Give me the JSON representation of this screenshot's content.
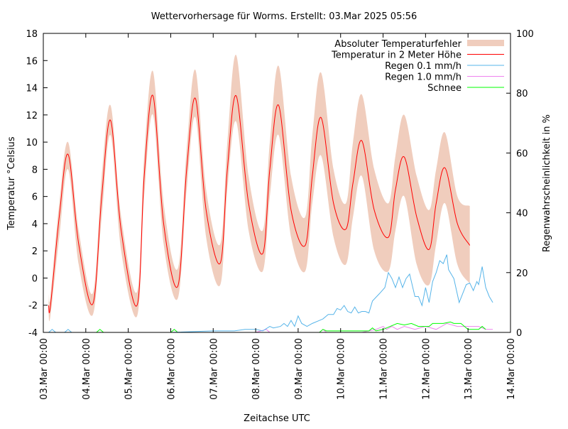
{
  "chart_data": {
    "type": "line",
    "title": "Wettervorhersage für Worms. Erstellt: 03.Mar 2025 05:56",
    "xlabel": "Zeitachse UTC",
    "ylabel": "Temperatur °Celsius",
    "y2label": "Regenwahrscheinlichkeit in %",
    "xlim": [
      "03.Mar 00:00",
      "14.Mar 00:00"
    ],
    "ylim": [
      -4,
      18
    ],
    "y2lim": [
      0,
      100
    ],
    "xticks": [
      "03.Mar 00:00",
      "04.Mar 00:00",
      "05.Mar 00:00",
      "06.Mar 00:00",
      "07.Mar 00:00",
      "08.Mar 00:00",
      "09.Mar 00:00",
      "10.Mar 00:00",
      "11.Mar 00:00",
      "12.Mar 00:00",
      "13.Mar 00:00",
      "14.Mar 00:00"
    ],
    "yticks": [
      -4,
      -2,
      0,
      2,
      4,
      6,
      8,
      10,
      12,
      14,
      16,
      18
    ],
    "y2ticks": [
      0,
      20,
      40,
      60,
      80,
      100
    ],
    "grid": false,
    "legend_position": "top-right",
    "series": [
      {
        "name": "Absoluter Temperaturfehler",
        "kind": "band",
        "axis": "y",
        "color": "#f0cdbd",
        "note_columns": [
          "time",
          "low",
          "high"
        ]
      },
      {
        "name": "Temperatur in 2 Meter Höhe",
        "kind": "line",
        "axis": "y",
        "color": "#ff0000"
      },
      {
        "name": "Regen 0.1 mm/h",
        "kind": "line",
        "axis": "y2",
        "color": "#56b4e9"
      },
      {
        "name": "Regen 1.0 mm/h",
        "kind": "line",
        "axis": "y2",
        "color": "#ee82ee"
      },
      {
        "name": "Schnee",
        "kind": "line",
        "axis": "y2",
        "color": "#00ff00"
      }
    ],
    "temperature": [
      [
        "03.Mar 03:00",
        -2.0,
        -2.6,
        -1.2
      ],
      [
        "03.Mar 04:00",
        -2.1,
        -2.8,
        -1.3
      ],
      [
        "03.Mar 09:00",
        4.5,
        3,
        5.5
      ],
      [
        "03.Mar 14:00",
        9.1,
        8,
        10
      ],
      [
        "03.Mar 20:00",
        2.5,
        1,
        3.5
      ],
      [
        "04.Mar 04:00",
        -1.9,
        -2.7,
        -1.1
      ],
      [
        "04.Mar 09:00",
        6,
        4.5,
        7.5
      ],
      [
        "04.Mar 14:00",
        11.6,
        10.5,
        12.7
      ],
      [
        "04.Mar 20:00",
        3.5,
        2,
        4.5
      ],
      [
        "05.Mar 05:00",
        -2,
        -2.8,
        -1
      ],
      [
        "05.Mar 09:00",
        7.5,
        6,
        9
      ],
      [
        "05.Mar 14:00",
        13.4,
        12,
        15.2
      ],
      [
        "05.Mar 20:00",
        4,
        2.5,
        5.5
      ],
      [
        "06.Mar 04:00",
        -0.6,
        -1.5,
        0.7
      ],
      [
        "06.Mar 09:00",
        8,
        6.5,
        9.5
      ],
      [
        "06.Mar 14:00",
        13.2,
        11.8,
        15.3
      ],
      [
        "06.Mar 20:00",
        5,
        3,
        6.5
      ],
      [
        "07.Mar 04:00",
        1.1,
        -0.5,
        2.5
      ],
      [
        "07.Mar 08:00",
        8,
        6.5,
        10
      ],
      [
        "07.Mar 13:00",
        13.4,
        11.5,
        16.4
      ],
      [
        "07.Mar 20:00",
        5.5,
        3.5,
        7.5
      ],
      [
        "08.Mar 04:00",
        1.8,
        0.5,
        3.5
      ],
      [
        "08.Mar 08:00",
        8,
        6,
        10
      ],
      [
        "08.Mar 13:00",
        12.7,
        10.5,
        15.6
      ],
      [
        "08.Mar 20:00",
        5,
        3,
        7.5
      ],
      [
        "09.Mar 04:00",
        2.4,
        0.5,
        4.5
      ],
      [
        "09.Mar 08:00",
        7.5,
        5.5,
        10.5
      ],
      [
        "09.Mar 13:00",
        11.8,
        9,
        15.1
      ],
      [
        "09.Mar 20:00",
        5.5,
        3,
        8
      ],
      [
        "10.Mar 03:00",
        3.6,
        1,
        5.5
      ],
      [
        "10.Mar 07:00",
        7,
        4.5,
        10
      ],
      [
        "10.Mar 12:00",
        10.1,
        7.5,
        13.5
      ],
      [
        "10.Mar 19:00",
        5,
        2,
        8
      ],
      [
        "11.Mar 03:00",
        3,
        0.5,
        5.5
      ],
      [
        "11.Mar 07:00",
        6.5,
        3.5,
        9
      ],
      [
        "11.Mar 12:00",
        8.9,
        6,
        12
      ],
      [
        "11.Mar 19:00",
        4.5,
        1,
        7.5
      ],
      [
        "12.Mar 02:00",
        2.1,
        -0.5,
        5
      ],
      [
        "12.Mar 06:00",
        5.5,
        2.5,
        8
      ],
      [
        "12.Mar 11:00",
        8.1,
        5.5,
        10.7
      ],
      [
        "12.Mar 18:00",
        4,
        1,
        6
      ],
      [
        "13.Mar 01:00",
        2.4,
        -0.4,
        5.3
      ]
    ],
    "rain_01": [
      [
        "03.Mar 03:00",
        0
      ],
      [
        "03.Mar 05:00",
        1
      ],
      [
        "03.Mar 07:00",
        0
      ],
      [
        "03.Mar 12:00",
        0
      ],
      [
        "03.Mar 14:00",
        1
      ],
      [
        "03.Mar 16:00",
        0
      ],
      [
        "04.Mar 00:00",
        0
      ],
      [
        "04.Mar 06:00",
        0
      ],
      [
        "05.Mar 00:00",
        0
      ],
      [
        "05.Mar 12:00",
        0
      ],
      [
        "06.Mar 00:00",
        0
      ],
      [
        "07.Mar 00:00",
        0.5
      ],
      [
        "07.Mar 12:00",
        0.5
      ],
      [
        "07.Mar 18:00",
        1
      ],
      [
        "08.Mar 00:00",
        1
      ],
      [
        "08.Mar 04:00",
        0.5
      ],
      [
        "08.Mar 08:00",
        2
      ],
      [
        "08.Mar 10:00",
        1.5
      ],
      [
        "08.Mar 14:00",
        2
      ],
      [
        "08.Mar 16:00",
        3
      ],
      [
        "08.Mar 18:00",
        2
      ],
      [
        "08.Mar 20:00",
        4
      ],
      [
        "08.Mar 22:00",
        2
      ],
      [
        "09.Mar 00:00",
        5.5
      ],
      [
        "09.Mar 02:00",
        3
      ],
      [
        "09.Mar 05:00",
        2
      ],
      [
        "09.Mar 08:00",
        3
      ],
      [
        "09.Mar 12:00",
        4
      ],
      [
        "09.Mar 14:00",
        4.5
      ],
      [
        "09.Mar 17:00",
        6
      ],
      [
        "09.Mar 20:00",
        6
      ],
      [
        "09.Mar 22:00",
        8
      ],
      [
        "10.Mar 00:00",
        7.5
      ],
      [
        "10.Mar 02:00",
        9
      ],
      [
        "10.Mar 04:00",
        7
      ],
      [
        "10.Mar 06:00",
        6.5
      ],
      [
        "10.Mar 08:00",
        8.5
      ],
      [
        "10.Mar 10:00",
        6.5
      ],
      [
        "10.Mar 12:00",
        7
      ],
      [
        "10.Mar 14:00",
        7
      ],
      [
        "10.Mar 16:00",
        6.5
      ],
      [
        "10.Mar 18:00",
        10.5
      ],
      [
        "10.Mar 22:00",
        13
      ],
      [
        "11.Mar 01:00",
        15
      ],
      [
        "11.Mar 03:00",
        20
      ],
      [
        "11.Mar 05:00",
        18
      ],
      [
        "11.Mar 07:00",
        15
      ],
      [
        "11.Mar 09:00",
        18.5
      ],
      [
        "11.Mar 11:00",
        15
      ],
      [
        "11.Mar 13:00",
        18
      ],
      [
        "11.Mar 15:00",
        19.5
      ],
      [
        "11.Mar 18:00",
        12
      ],
      [
        "11.Mar 20:00",
        12
      ],
      [
        "11.Mar 22:00",
        9
      ],
      [
        "12.Mar 00:00",
        15
      ],
      [
        "12.Mar 02:00",
        10
      ],
      [
        "12.Mar 04:00",
        17
      ],
      [
        "12.Mar 06:00",
        20
      ],
      [
        "12.Mar 08:00",
        24
      ],
      [
        "12.Mar 10:00",
        23
      ],
      [
        "12.Mar 12:00",
        26
      ],
      [
        "12.Mar 13:00",
        21
      ],
      [
        "12.Mar 16:00",
        18
      ],
      [
        "12.Mar 19:00",
        10
      ],
      [
        "12.Mar 21:00",
        13
      ],
      [
        "12.Mar 23:00",
        16
      ],
      [
        "13.Mar 01:00",
        16.5
      ],
      [
        "13.Mar 03:00",
        14
      ],
      [
        "13.Mar 05:00",
        17
      ],
      [
        "13.Mar 06:00",
        16
      ],
      [
        "13.Mar 08:00",
        22
      ],
      [
        "13.Mar 10:00",
        15
      ],
      [
        "13.Mar 12:00",
        12
      ],
      [
        "13.Mar 14:00",
        10
      ]
    ],
    "rain_10": [
      [
        "03.Mar 03:00",
        0
      ],
      [
        "08.Mar 00:00",
        0
      ],
      [
        "08.Mar 06:00",
        1
      ],
      [
        "08.Mar 08:00",
        0
      ],
      [
        "09.Mar 12:00",
        0
      ],
      [
        "09.Mar 14:00",
        1
      ],
      [
        "09.Mar 16:00",
        0
      ],
      [
        "10.Mar 00:00",
        0
      ],
      [
        "10.Mar 12:00",
        0
      ],
      [
        "10.Mar 20:00",
        1
      ],
      [
        "11.Mar 00:00",
        2
      ],
      [
        "11.Mar 02:00",
        1
      ],
      [
        "11.Mar 05:00",
        2
      ],
      [
        "11.Mar 08:00",
        1
      ],
      [
        "11.Mar 12:00",
        2
      ],
      [
        "11.Mar 18:00",
        1
      ],
      [
        "12.Mar 00:00",
        2
      ],
      [
        "12.Mar 06:00",
        1
      ],
      [
        "12.Mar 12:00",
        3
      ],
      [
        "12.Mar 18:00",
        2
      ],
      [
        "13.Mar 00:00",
        2
      ],
      [
        "13.Mar 06:00",
        2
      ],
      [
        "13.Mar 10:00",
        1
      ],
      [
        "13.Mar 14:00",
        1
      ]
    ],
    "snow": [
      [
        "03.Mar 03:00",
        0
      ],
      [
        "04.Mar 06:00",
        0
      ],
      [
        "04.Mar 08:00",
        1
      ],
      [
        "04.Mar 10:00",
        0
      ],
      [
        "06.Mar 00:00",
        0
      ],
      [
        "06.Mar 02:00",
        1
      ],
      [
        "06.Mar 04:00",
        0
      ],
      [
        "09.Mar 12:00",
        0
      ],
      [
        "09.Mar 14:00",
        1
      ],
      [
        "09.Mar 16:00",
        0.5
      ],
      [
        "10.Mar 16:00",
        0.5
      ],
      [
        "10.Mar 18:00",
        1.5
      ],
      [
        "10.Mar 20:00",
        0.5
      ],
      [
        "11.Mar 00:00",
        1
      ],
      [
        "11.Mar 04:00",
        2
      ],
      [
        "11.Mar 08:00",
        3
      ],
      [
        "11.Mar 12:00",
        2.5
      ],
      [
        "11.Mar 16:00",
        3
      ],
      [
        "11.Mar 20:00",
        2
      ],
      [
        "12.Mar 02:00",
        2
      ],
      [
        "12.Mar 04:00",
        3
      ],
      [
        "12.Mar 10:00",
        3
      ],
      [
        "12.Mar 14:00",
        3.5
      ],
      [
        "12.Mar 16:00",
        3
      ],
      [
        "12.Mar 20:00",
        3
      ],
      [
        "12.Mar 22:00",
        2
      ],
      [
        "13.Mar 00:00",
        1
      ],
      [
        "13.Mar 06:00",
        1
      ],
      [
        "13.Mar 08:00",
        2
      ],
      [
        "13.Mar 10:00",
        1
      ]
    ]
  }
}
